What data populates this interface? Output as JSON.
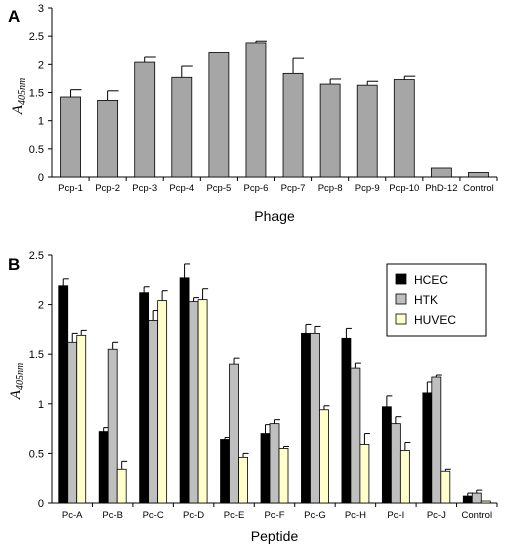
{
  "chart_data": [
    {
      "panel": "A",
      "type": "bar",
      "xlabel": "Phage",
      "ylabel_main": "A",
      "ylabel_sub": "405nm",
      "ylim": [
        0,
        3
      ],
      "yticks": [
        "0",
        "0.5",
        "1",
        "1.5",
        "2",
        "2.5",
        "3"
      ],
      "categories": [
        "Pcp-1",
        "Pcp-2",
        "Pcp-3",
        "Pcp-4",
        "Pcp-5",
        "Pcp-6",
        "Pcp-7",
        "Pcp-8",
        "Pcp-9",
        "Pcp-10",
        "PhD-12",
        "Control"
      ],
      "series": [
        {
          "color": "#a6a6a6",
          "values": [
            1.42,
            1.36,
            2.04,
            1.77,
            2.21,
            2.38,
            1.84,
            1.65,
            1.63,
            1.73,
            0.16,
            0.08
          ],
          "errors": [
            0.13,
            0.17,
            0.09,
            0.2,
            0.0,
            0.03,
            0.27,
            0.09,
            0.07,
            0.06,
            0.0,
            0.0
          ]
        }
      ],
      "grid": false
    },
    {
      "panel": "B",
      "type": "bar",
      "xlabel": "Peptide",
      "ylabel_main": "A",
      "ylabel_sub": "405nm",
      "ylim": [
        0,
        2.5
      ],
      "yticks": [
        "0",
        "0.5",
        "1",
        "1.5",
        "2",
        "2.5"
      ],
      "categories": [
        "Pc-A",
        "Pc-B",
        "Pc-C",
        "Pc-D",
        "Pc-E",
        "Pc-F",
        "Pc-G",
        "Pc-H",
        "Pc-I",
        "Pc-J",
        "Control"
      ],
      "legend_position": "top-right",
      "series": [
        {
          "name": "HCEC",
          "color": "#000000",
          "values": [
            2.19,
            0.72,
            2.12,
            2.27,
            0.64,
            0.7,
            1.71,
            1.66,
            0.97,
            1.11,
            0.07
          ],
          "errors": [
            0.07,
            0.04,
            0.06,
            0.14,
            0.02,
            0.09,
            0.09,
            0.1,
            0.11,
            0.11,
            0.03
          ]
        },
        {
          "name": "HTK",
          "color": "#bfbfbf",
          "values": [
            1.62,
            1.55,
            1.84,
            2.03,
            1.4,
            0.8,
            1.71,
            1.36,
            0.8,
            1.27,
            0.1
          ],
          "errors": [
            0.09,
            0.07,
            0.1,
            0.04,
            0.06,
            0.04,
            0.07,
            0.05,
            0.07,
            0.02,
            0.03
          ]
        },
        {
          "name": "HUVEC",
          "color": "#ffffcc",
          "values": [
            1.69,
            0.34,
            2.04,
            2.05,
            0.46,
            0.55,
            0.94,
            0.59,
            0.53,
            0.32,
            0.02
          ],
          "errors": [
            0.05,
            0.08,
            0.1,
            0.11,
            0.04,
            0.02,
            0.04,
            0.11,
            0.08,
            0.02,
            0.0
          ]
        }
      ],
      "grid": false
    }
  ]
}
